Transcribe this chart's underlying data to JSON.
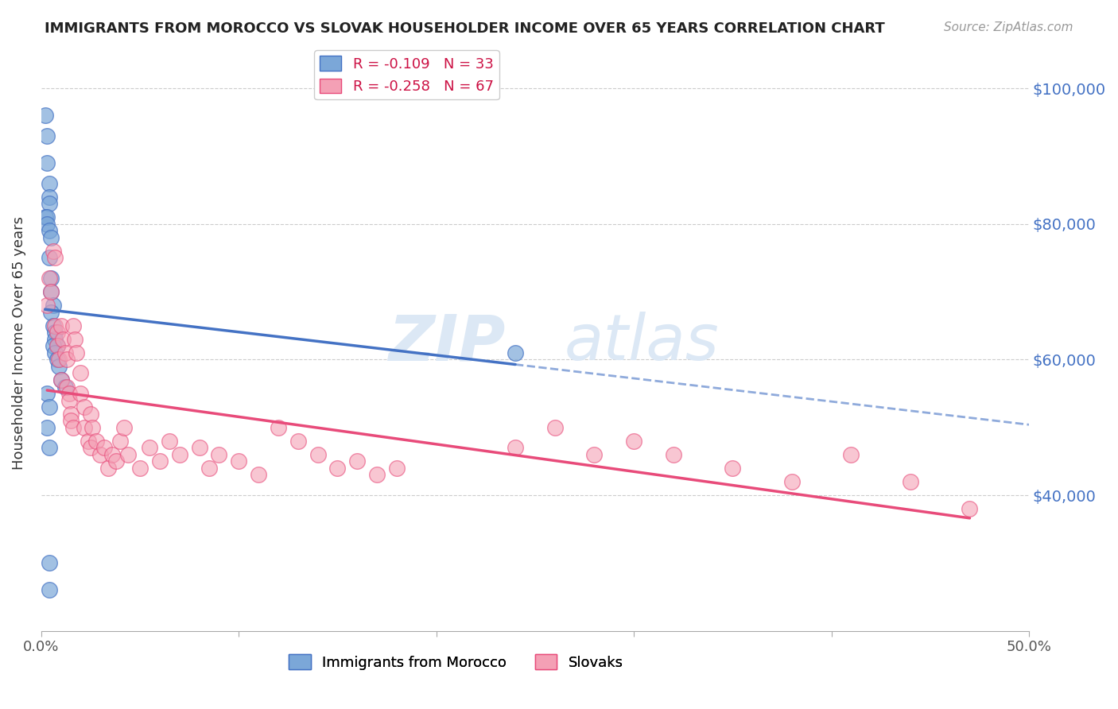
{
  "title": "IMMIGRANTS FROM MOROCCO VS SLOVAK HOUSEHOLDER INCOME OVER 65 YEARS CORRELATION CHART",
  "source": "Source: ZipAtlas.com",
  "ylabel": "Householder Income Over 65 years",
  "xlim": [
    0.0,
    0.5
  ],
  "ylim": [
    20000,
    105000
  ],
  "legend_r1": "R = -0.109",
  "legend_n1": "N = 33",
  "legend_r2": "R = -0.258",
  "legend_n2": "N = 67",
  "color_morocco": "#7BA7D8",
  "color_slovak": "#F4A0B5",
  "color_line_morocco": "#4472C4",
  "color_line_slovak": "#E84B7A",
  "watermark_zip": "ZIP",
  "watermark_atlas": "atlas",
  "morocco_x": [
    0.002,
    0.003,
    0.003,
    0.004,
    0.004,
    0.004,
    0.002,
    0.003,
    0.003,
    0.004,
    0.005,
    0.004,
    0.005,
    0.005,
    0.006,
    0.005,
    0.006,
    0.007,
    0.007,
    0.008,
    0.006,
    0.007,
    0.008,
    0.009,
    0.01,
    0.012,
    0.003,
    0.004,
    0.003,
    0.004,
    0.24,
    0.004,
    0.004
  ],
  "morocco_y": [
    96000,
    93000,
    89000,
    86000,
    84000,
    83000,
    81000,
    81000,
    80000,
    79000,
    78000,
    75000,
    72000,
    70000,
    68000,
    67000,
    65000,
    64000,
    63000,
    62000,
    62000,
    61000,
    60000,
    59000,
    57000,
    56000,
    55000,
    53000,
    50000,
    47000,
    61000,
    30000,
    26000
  ],
  "slovak_x": [
    0.003,
    0.004,
    0.005,
    0.006,
    0.007,
    0.007,
    0.008,
    0.008,
    0.009,
    0.01,
    0.01,
    0.011,
    0.012,
    0.013,
    0.013,
    0.014,
    0.014,
    0.015,
    0.015,
    0.016,
    0.016,
    0.017,
    0.018,
    0.02,
    0.02,
    0.022,
    0.022,
    0.024,
    0.025,
    0.025,
    0.026,
    0.028,
    0.03,
    0.032,
    0.034,
    0.036,
    0.038,
    0.04,
    0.042,
    0.044,
    0.05,
    0.055,
    0.06,
    0.065,
    0.07,
    0.08,
    0.085,
    0.09,
    0.1,
    0.11,
    0.12,
    0.13,
    0.14,
    0.15,
    0.16,
    0.17,
    0.18,
    0.24,
    0.26,
    0.28,
    0.3,
    0.32,
    0.35,
    0.38,
    0.41,
    0.44,
    0.47
  ],
  "slovak_y": [
    68000,
    72000,
    70000,
    76000,
    75000,
    65000,
    64000,
    62000,
    60000,
    57000,
    65000,
    63000,
    61000,
    60000,
    56000,
    55000,
    54000,
    52000,
    51000,
    50000,
    65000,
    63000,
    61000,
    58000,
    55000,
    53000,
    50000,
    48000,
    52000,
    47000,
    50000,
    48000,
    46000,
    47000,
    44000,
    46000,
    45000,
    48000,
    50000,
    46000,
    44000,
    47000,
    45000,
    48000,
    46000,
    47000,
    44000,
    46000,
    45000,
    43000,
    50000,
    48000,
    46000,
    44000,
    45000,
    43000,
    44000,
    47000,
    50000,
    46000,
    48000,
    46000,
    44000,
    42000,
    46000,
    42000,
    38000
  ]
}
